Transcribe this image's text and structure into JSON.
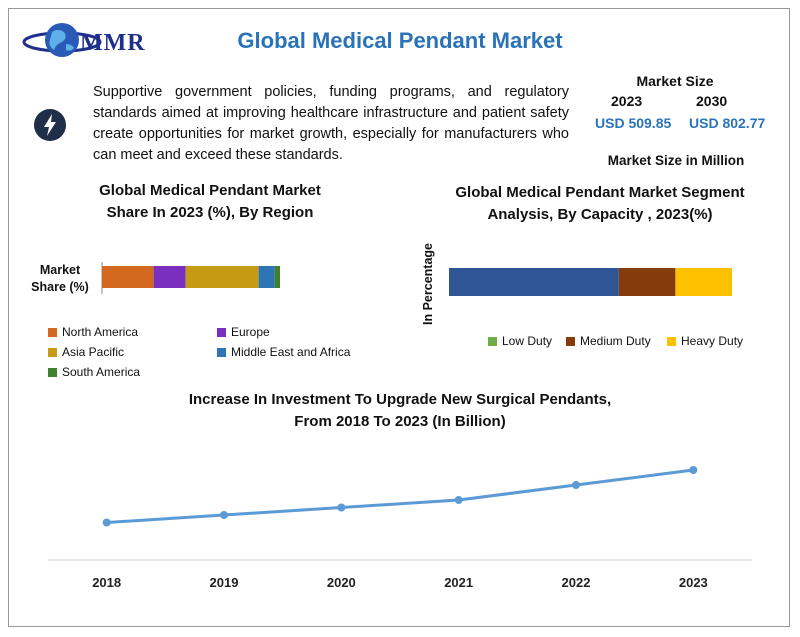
{
  "header": {
    "logo_text": "MMR",
    "title": "Global Medical Pendant Market"
  },
  "intro": {
    "text": "Supportive government policies, funding programs, and regulatory standards aimed at improving healthcare infrastructure and patient safety create opportunities for market growth, especially for manufacturers who can meet and exceed these standards."
  },
  "market_size": {
    "heading": "Market Size",
    "year_a": "2023",
    "year_b": "2030",
    "value_a": "USD 509.85",
    "value_b": "USD 802.77",
    "footer": "Market Size in Million"
  },
  "colors": {
    "accent": "#2a73b8",
    "line": "#5b9bd5"
  },
  "chart_data": [
    {
      "type": "bar",
      "orientation": "horizontal-stacked",
      "title_line1": "Global Medical Pendant Market",
      "title_line2": "Share In 2023 (%), By Region",
      "ylabel_line1": "Market",
      "ylabel_line2": "Share (%)",
      "categories": [
        "Market Share (%)"
      ],
      "series": [
        {
          "name": "North America",
          "values": [
            29
          ],
          "color": "#d2691e"
        },
        {
          "name": "Europe",
          "values": [
            18
          ],
          "color": "#7b2fbe"
        },
        {
          "name": "Asia Pacific",
          "values": [
            41
          ],
          "color": "#c59a14"
        },
        {
          "name": "Middle East and Africa",
          "values": [
            9
          ],
          "color": "#2e75b6"
        },
        {
          "name": "South America",
          "values": [
            3
          ],
          "color": "#3f7f2f"
        }
      ],
      "grid": false,
      "legend_position": "bottom"
    },
    {
      "type": "bar",
      "orientation": "horizontal-stacked",
      "title_line1": "Global Medical Pendant Market Segment",
      "title_line2": "Analysis, By Capacity  , 2023(%)",
      "ylabel": "In Percentage",
      "series": [
        {
          "name": "Low Duty",
          "values": [
            60
          ],
          "color": "#2f5597"
        },
        {
          "name": "Medium Duty",
          "values": [
            20
          ],
          "color": "#843c0c"
        },
        {
          "name": "Heavy Duty",
          "values": [
            20
          ],
          "color": "#ffc000"
        }
      ],
      "legend_colors": [
        "#70ad47",
        "#843c0c",
        "#ffc000"
      ],
      "grid": false,
      "legend_position": "bottom"
    },
    {
      "type": "line",
      "title_line1": "Increase In Investment To Upgrade New Surgical Pendants,",
      "title_line2": "From 2018 To 2023 (In Billion)",
      "x": [
        "2018",
        "2019",
        "2020",
        "2021",
        "2022",
        "2023"
      ],
      "series": [
        {
          "values": [
            1.0,
            1.2,
            1.4,
            1.6,
            2.0,
            2.4
          ],
          "color": "#5b9bd5"
        }
      ],
      "ylim": [
        0,
        3.2
      ],
      "grid": false
    }
  ]
}
